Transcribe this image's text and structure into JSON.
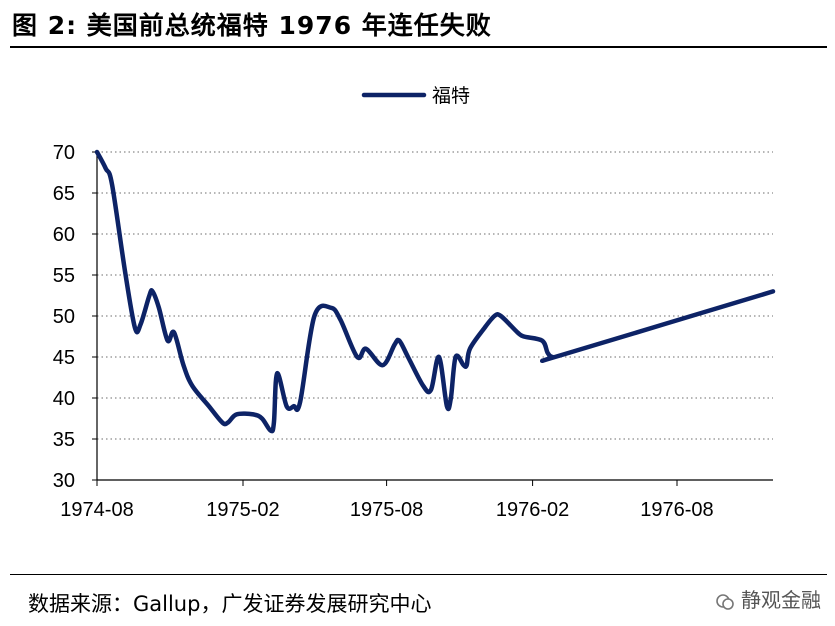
{
  "header": {
    "title": "图 2:  美国前总统福特 1976 年连任失败"
  },
  "footer": {
    "source": "数据来源：Gallup，广发证券发展研究中心",
    "watermark": "静观金融"
  },
  "chart_data": {
    "type": "line",
    "title": "",
    "xlabel": "",
    "ylabel": "",
    "ylim": [
      30,
      70
    ],
    "yticks": [
      30,
      35,
      40,
      45,
      50,
      55,
      60,
      65,
      70
    ],
    "xticks": [
      "1974-08",
      "1975-02",
      "1975-08",
      "1976-02",
      "1976-08"
    ],
    "xlim": [
      "1974-08-01",
      "1976-11-30"
    ],
    "grid": true,
    "legend": "top-center",
    "series": [
      {
        "name": "福特",
        "color": "#0d2366",
        "points": [
          [
            "1974-08-01",
            70
          ],
          [
            "1974-08-12",
            68
          ],
          [
            "1974-08-20",
            66
          ],
          [
            "1974-09-06",
            55
          ],
          [
            "1974-09-18",
            48.5
          ],
          [
            "1974-09-25",
            49
          ],
          [
            "1974-10-06",
            52.5
          ],
          [
            "1974-10-10",
            53
          ],
          [
            "1974-10-18",
            51
          ],
          [
            "1974-10-29",
            47
          ],
          [
            "1974-11-06",
            48
          ],
          [
            "1974-11-18",
            44
          ],
          [
            "1974-11-29",
            41.5
          ],
          [
            "1974-12-20",
            39
          ],
          [
            "1975-01-06",
            37
          ],
          [
            "1975-01-13",
            37
          ],
          [
            "1975-01-24",
            38
          ],
          [
            "1975-02-14",
            38
          ],
          [
            "1975-02-25",
            37.5
          ],
          [
            "1975-03-08",
            36
          ],
          [
            "1975-03-12",
            37
          ],
          [
            "1975-03-16",
            43
          ],
          [
            "1975-03-28",
            39
          ],
          [
            "1975-04-06",
            39
          ],
          [
            "1975-04-14",
            39.5
          ],
          [
            "1975-05-02",
            50
          ],
          [
            "1975-05-23",
            51
          ],
          [
            "1975-06-04",
            49.5
          ],
          [
            "1975-06-25",
            45
          ],
          [
            "1975-07-06",
            46
          ],
          [
            "1975-07-27",
            44
          ],
          [
            "1975-08-11",
            46.5
          ],
          [
            "1975-08-17",
            47
          ],
          [
            "1975-08-28",
            45
          ],
          [
            "1975-09-16",
            41.5
          ],
          [
            "1975-09-26",
            41
          ],
          [
            "1975-10-06",
            45
          ],
          [
            "1975-10-16",
            39
          ],
          [
            "1975-10-21",
            40
          ],
          [
            "1975-10-27",
            45
          ],
          [
            "1975-11-06",
            44
          ],
          [
            "1975-11-10",
            44
          ],
          [
            "1975-11-14",
            46
          ],
          [
            "1975-12-02",
            48.5
          ],
          [
            "1975-12-15",
            50
          ],
          [
            "1975-12-23",
            50
          ],
          [
            "1976-01-13",
            48
          ],
          [
            "1976-01-21",
            47.5
          ],
          [
            "1976-02-13",
            47
          ],
          [
            "1976-02-20",
            45.5
          ],
          [
            "1976-02-26",
            45
          ],
          [
            "1976-03-07",
            45.2
          ],
          [
            "1976-11-30",
            53
          ]
        ]
      }
    ]
  }
}
